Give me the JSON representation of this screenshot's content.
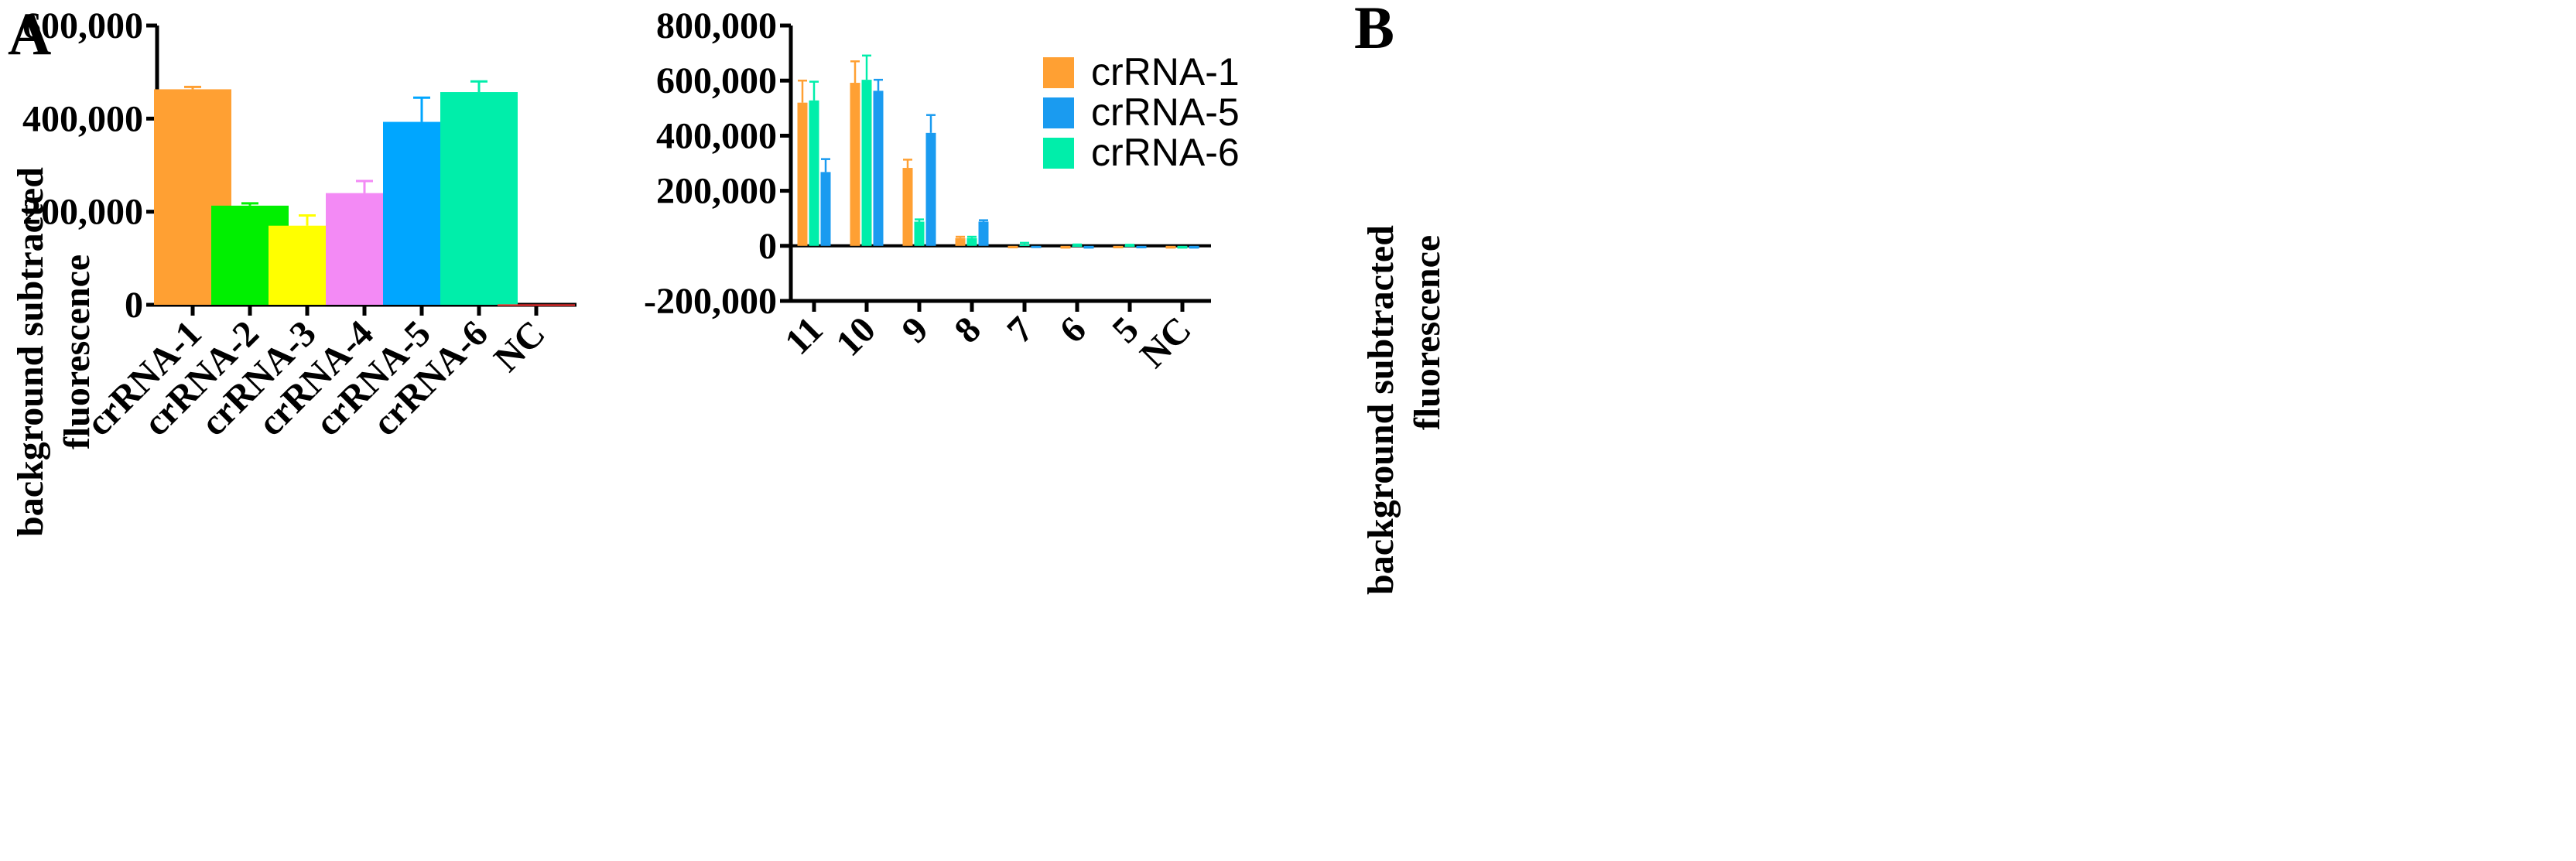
{
  "chart_data": [
    {
      "type": "bar",
      "panel_label": "A",
      "ylabel": [
        "background subtracted",
        "fluorescence"
      ],
      "ylim": [
        0,
        600000
      ],
      "yticks": [
        0,
        200000,
        400000,
        600000
      ],
      "ytick_labels": [
        "0",
        "200,000",
        "400,000",
        "600,000"
      ],
      "categories": [
        "crRNA-1",
        "crRNA-2",
        "crRNA-3",
        "crRNA-4",
        "crRNA-5",
        "crRNA-6",
        "NC"
      ],
      "values": [
        463000,
        213000,
        170000,
        240000,
        393000,
        457000,
        1000
      ],
      "errors": [
        5000,
        5000,
        22000,
        26000,
        52000,
        23000,
        0
      ],
      "colors": [
        "#FFA033",
        "#00F000",
        "#FFFF00",
        "#F38AF5",
        "#00A6FF",
        "#00EEAA",
        "#FF3333"
      ],
      "legend": null
    },
    {
      "type": "bar",
      "panel_label": "B",
      "ylabel": [
        "background subtracted",
        "fluorescence"
      ],
      "ylim": [
        -200000,
        800000
      ],
      "yticks": [
        -200000,
        0,
        200000,
        400000,
        600000,
        800000
      ],
      "ytick_labels": [
        "-200,000",
        "0",
        "200,000",
        "400,000",
        "600,000",
        "800,000"
      ],
      "categories": [
        "11",
        "10",
        "9",
        "8",
        "7",
        "6",
        "5",
        "NC"
      ],
      "series": [
        {
          "name": "crRNA-1",
          "color": "#FFA033",
          "values": [
            520000,
            592000,
            283000,
            28000,
            -9000,
            -10000,
            -9000,
            -10000
          ],
          "errors": [
            80000,
            78000,
            30000,
            5000,
            0,
            0,
            0,
            0
          ]
        },
        {
          "name": "crRNA-6",
          "color": "#00EEAA",
          "values": [
            528000,
            603000,
            88000,
            28000,
            5000,
            2000,
            2000,
            -10000
          ],
          "errors": [
            68000,
            88000,
            8000,
            5000,
            6000,
            3000,
            2000,
            0
          ]
        },
        {
          "name": "crRNA-5",
          "color": "#1A9BF0",
          "values": [
            268000,
            563000,
            410000,
            88000,
            -8000,
            -10000,
            -9000,
            -10000
          ],
          "errors": [
            47000,
            40000,
            65000,
            5000,
            0,
            0,
            0,
            0
          ]
        }
      ],
      "legend": {
        "placement": "top-right",
        "entries": [
          {
            "name": "crRNA-1",
            "color": "#FFA033"
          },
          {
            "name": "crRNA-5",
            "color": "#1A9BF0"
          },
          {
            "name": "crRNA-6",
            "color": "#00EEAA"
          }
        ]
      }
    }
  ]
}
